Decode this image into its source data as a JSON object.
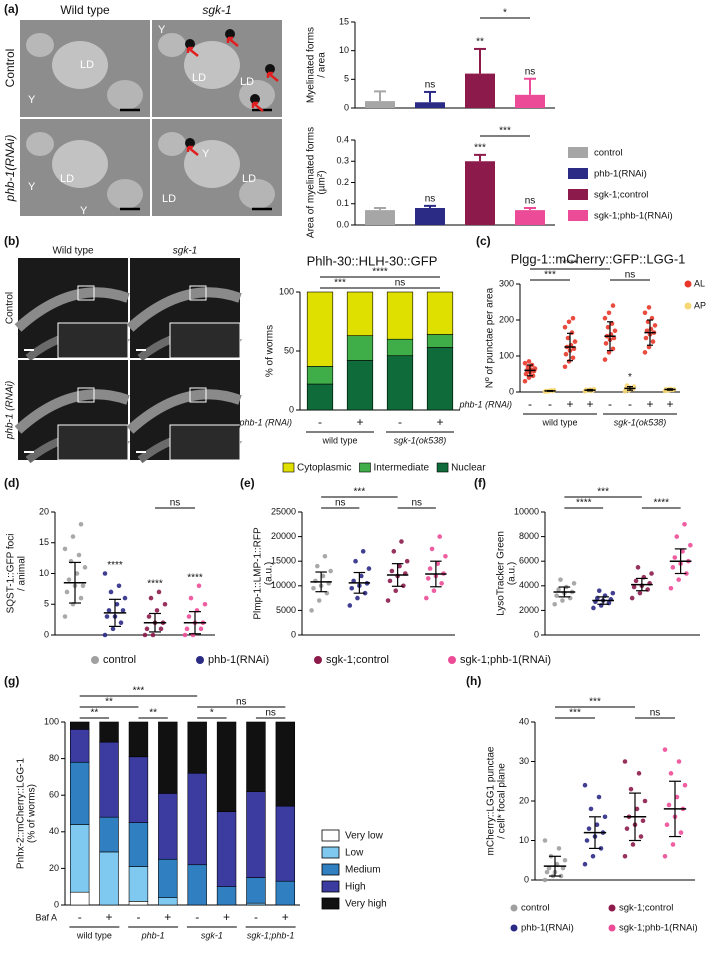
{
  "panel_labels": [
    "(a)",
    "(b)",
    "(c)",
    "(d)",
    "(e)",
    "(f)",
    "(g)",
    "(h)"
  ],
  "panel_a": {
    "columns": [
      "Wild type",
      "sgk-1"
    ],
    "rows": [
      "Control",
      "phb-1(RNAi)"
    ],
    "image_labels": [
      [
        "Y",
        "LD"
      ],
      [
        "Y",
        "LD",
        "LD"
      ],
      [
        "Y",
        "LD",
        "Y"
      ],
      [
        "Y",
        "LD",
        "LD"
      ]
    ]
  },
  "panel_b": {
    "columns": [
      "Wild type",
      "sgk-1"
    ],
    "rows": [
      "Control",
      "phb-1 (RNAi)"
    ]
  },
  "chart_data": [
    {
      "type": "bar",
      "ylabel": [
        "Myelinated forms",
        "/ area"
      ],
      "ylim": [
        0,
        15
      ],
      "yticks": [
        0,
        5,
        10,
        15
      ],
      "values": [
        1.2,
        1.0,
        6.0,
        2.3
      ],
      "errors": [
        1.7,
        1.8,
        4.3,
        2.8
      ],
      "colors": [
        "#a6a6a6",
        "#2b2a85",
        "#8c1b4b",
        "#ec4c97"
      ],
      "sig": [
        null,
        "ns",
        "**",
        "ns"
      ],
      "brackets": [
        {
          "label": "*",
          "from": 2,
          "to": 3
        }
      ]
    },
    {
      "type": "bar",
      "ylabel": [
        "Area of myelinated forms",
        "(µm²)"
      ],
      "ylim": [
        0,
        0.4
      ],
      "yticks": [
        {
          "value": 0,
          "label": "0.0"
        },
        0.1,
        0.2,
        0.3,
        0.4
      ],
      "values": [
        0.07,
        0.08,
        0.3,
        0.07
      ],
      "errors": [
        0.01,
        0.01,
        0.03,
        0.01
      ],
      "colors": [
        "#a6a6a6",
        "#2b2a85",
        "#8c1b4b",
        "#ec4c97"
      ],
      "sig": [
        null,
        "ns",
        "***",
        "ns"
      ],
      "names": [
        "control",
        "phb-1(RNAi)",
        "sgk-1;control",
        "sgk-1;phb-1(RNAi)"
      ],
      "legend": "right",
      "brackets": [
        {
          "label": "***",
          "from": 2,
          "to": 3
        }
      ]
    },
    {
      "type": "stacked",
      "title": "Phlh-30::HLH-30::GFP",
      "ylabel": [
        "% of worms"
      ],
      "ylim": [
        0,
        100
      ],
      "yticks": [
        0,
        50,
        100
      ],
      "series": [
        {
          "name": "Nuclear",
          "color": "#0f6b3a",
          "values": [
            22,
            42,
            46,
            53
          ]
        },
        {
          "name": "Intermediate",
          "color": "#3fae49",
          "values": [
            15,
            21,
            14,
            11
          ]
        },
        {
          "name": "Cytoplasmic",
          "color": "#e0e000",
          "values": [
            63,
            37,
            40,
            36
          ]
        }
      ],
      "sign_label": "phb-1 (RNAi)",
      "signs": [
        "-",
        "+",
        "-",
        "+"
      ],
      "groups": [
        "wild type",
        "sgk-1(ok538)"
      ],
      "legend": "bottom",
      "brackets": [
        {
          "label": "***",
          "from": 0,
          "to": 1
        },
        {
          "label": "ns",
          "from": 1,
          "to": 3
        },
        {
          "label": "****",
          "from": 0,
          "to": 3
        }
      ]
    },
    {
      "type": "strip",
      "title": "Plgg-1::mCherry::GFP::LGG-1",
      "ylabel": [
        "Nº of punctae per area"
      ],
      "ylim": [
        0,
        300
      ],
      "yticks": [
        0,
        100,
        200,
        300
      ],
      "legend_items": [
        {
          "name": "AL",
          "color": "#e8372a"
        },
        {
          "name": "AP",
          "color": "#f7d774"
        }
      ],
      "legend": "right",
      "series": [
        {
          "color": "#e8372a",
          "values": [
            30,
            40,
            45,
            50,
            55,
            58,
            60,
            62,
            65,
            70,
            75,
            80,
            85
          ],
          "mean": 60,
          "sd": 15
        },
        {
          "color": "#f7d774",
          "values": [
            1,
            2,
            3,
            3,
            4,
            5,
            2,
            4
          ],
          "mean": 3,
          "sd": 1
        },
        {
          "color": "#e8372a",
          "values": [
            70,
            85,
            95,
            105,
            115,
            120,
            125,
            130,
            140,
            150,
            165,
            180,
            195,
            205
          ],
          "mean": 125,
          "sd": 38
        },
        {
          "color": "#f7d774",
          "values": [
            2,
            4,
            5,
            6,
            7,
            8,
            5,
            3
          ],
          "mean": 5,
          "sd": 2
        },
        {
          "color": "#e8372a",
          "values": [
            90,
            110,
            120,
            135,
            145,
            150,
            155,
            160,
            170,
            180,
            190,
            205,
            220,
            240
          ],
          "mean": 155,
          "sd": 40
        },
        {
          "color": "#f7d774",
          "values": [
            2,
            5,
            8,
            10,
            12,
            15,
            18,
            9
          ],
          "mean": 10,
          "sd": 5,
          "sig": "*"
        },
        {
          "color": "#e8372a",
          "values": [
            110,
            125,
            140,
            150,
            160,
            165,
            170,
            175,
            185,
            195,
            205,
            220,
            235
          ],
          "mean": 165,
          "sd": 35
        },
        {
          "color": "#f7d774",
          "values": [
            3,
            5,
            6,
            8,
            9,
            7,
            4,
            6
          ],
          "mean": 7,
          "sd": 2
        }
      ],
      "sign_label": "phb-1 (RNAi)",
      "signs": [
        "-",
        "-",
        "+",
        "+",
        "-",
        "-",
        "+",
        "+"
      ],
      "groups": [
        "wild type",
        "sgk-1(ok538)"
      ],
      "brackets": [
        {
          "label": "***",
          "from": 0,
          "to": 2
        },
        {
          "label": "****",
          "from": 0,
          "to": 4
        },
        {
          "label": "ns",
          "from": 4,
          "to": 6
        }
      ]
    },
    {
      "type": "strip",
      "ylabel": [
        "SQST-1::GFP foci",
        "/ animal"
      ],
      "ylim": [
        0,
        20
      ],
      "yticks": [
        0,
        5,
        10,
        15,
        20
      ],
      "legend": "bottom",
      "series": [
        {
          "name": "control",
          "color": "#a0a0a0",
          "values": [
            3,
            5,
            6,
            7,
            8,
            8,
            9,
            10,
            11,
            12,
            13,
            14,
            16,
            18
          ],
          "mean": 8.5,
          "sd": 3.3
        },
        {
          "name": "phb-1(RNAi)",
          "color": "#2b2a85",
          "values": [
            0,
            1,
            2,
            3,
            3,
            4,
            4,
            5,
            6,
            7,
            8,
            10
          ],
          "mean": 3.6,
          "sd": 2.2,
          "sig": "****"
        },
        {
          "name": "sgk-1;control",
          "color": "#8c1b4b",
          "values": [
            0,
            0,
            1,
            1,
            2,
            2,
            3,
            4,
            5,
            6,
            7
          ],
          "mean": 2,
          "sd": 1.5,
          "sig": "****"
        },
        {
          "name": "sgk-1;phb-1(RNAi)",
          "color": "#ec4c97",
          "values": [
            0,
            0,
            1,
            1,
            2,
            2,
            3,
            4,
            5,
            6,
            8
          ],
          "mean": 2,
          "sd": 1.8,
          "sig": "****"
        }
      ],
      "brackets": [
        {
          "label": "ns",
          "from": 2,
          "to": 3
        }
      ]
    },
    {
      "type": "strip",
      "ylabel": [
        "Plmp-1::LMP-1::RFP",
        "(a.u.)"
      ],
      "ylim": [
        0,
        25000
      ],
      "yticks": [
        0,
        5000,
        10000,
        15000,
        20000,
        25000
      ],
      "series": [
        {
          "color": "#a0a0a0",
          "values": [
            5000,
            7000,
            8500,
            9500,
            10000,
            10500,
            11000,
            12000,
            13000,
            14000,
            16000
          ],
          "mean": 10800,
          "sd": 2000
        },
        {
          "color": "#2b2a85",
          "values": [
            6000,
            7500,
            8500,
            9500,
            10000,
            10500,
            11000,
            12000,
            13500,
            15000,
            17000
          ],
          "mean": 10600,
          "sd": 2100
        },
        {
          "color": "#8c1b4b",
          "values": [
            7000,
            9000,
            10000,
            11000,
            12000,
            12500,
            13000,
            14000,
            15000,
            17000,
            19000
          ],
          "mean": 12200,
          "sd": 2300
        },
        {
          "color": "#ec4c97",
          "values": [
            7500,
            9000,
            10500,
            11500,
            12000,
            12500,
            13500,
            14500,
            16000,
            17500,
            20000
          ],
          "mean": 12400,
          "sd": 2600
        }
      ],
      "brackets": [
        {
          "label": "ns",
          "from": 0,
          "to": 1
        },
        {
          "label": "***",
          "from": 0,
          "to": 2
        },
        {
          "label": "ns",
          "from": 2,
          "to": 3
        }
      ]
    },
    {
      "type": "strip",
      "ylabel": [
        "LysoTracker Green",
        "(a.u.)"
      ],
      "ylim": [
        0,
        10000
      ],
      "yticks": [
        0,
        2000,
        4000,
        6000,
        8000,
        10000
      ],
      "series": [
        {
          "color": "#a0a0a0",
          "values": [
            2500,
            2800,
            3000,
            3200,
            3400,
            3500,
            3700,
            3900,
            4200,
            4500
          ],
          "mean": 3500,
          "sd": 400
        },
        {
          "color": "#2b2a85",
          "values": [
            2200,
            2400,
            2600,
            2700,
            2800,
            2900,
            3000,
            3200,
            3400,
            3600
          ],
          "mean": 2800,
          "sd": 300
        },
        {
          "color": "#8c1b4b",
          "values": [
            3000,
            3400,
            3700,
            3900,
            4000,
            4200,
            4400,
            4700,
            5000,
            5500
          ],
          "mean": 4100,
          "sd": 500
        },
        {
          "color": "#ec4c97",
          "values": [
            3800,
            4500,
            5000,
            5500,
            5800,
            6000,
            6300,
            6800,
            7300,
            8000,
            9000
          ],
          "mean": 6000,
          "sd": 1000
        }
      ],
      "brackets": [
        {
          "label": "****",
          "from": 0,
          "to": 1
        },
        {
          "label": "***",
          "from": 0,
          "to": 2
        },
        {
          "label": "****",
          "from": 2,
          "to": 3
        }
      ]
    },
    {
      "type": "stacked",
      "ylabel": [
        "Pnhx-2::mCherry::LGG-1",
        "(% of worms)"
      ],
      "ylim": [
        0,
        100
      ],
      "yticks": [
        0,
        20,
        40,
        60,
        80,
        100
      ],
      "legend": "right",
      "series": [
        {
          "name": "Very low",
          "color": "#ffffff",
          "values": [
            7,
            0,
            2,
            0,
            0,
            0,
            0,
            0
          ]
        },
        {
          "name": "Low",
          "color": "#7fc8ef",
          "values": [
            37,
            29,
            19,
            4,
            0,
            0,
            1,
            0
          ]
        },
        {
          "name": "Medium",
          "color": "#2f7fc1",
          "values": [
            34,
            19,
            24,
            21,
            22,
            10,
            14,
            13
          ]
        },
        {
          "name": "High",
          "color": "#3b3ba0",
          "values": [
            18,
            41,
            36,
            36,
            50,
            41,
            47,
            41
          ]
        },
        {
          "name": "Very high",
          "color": "#111111",
          "values": [
            4,
            11,
            19,
            39,
            28,
            49,
            38,
            46
          ]
        }
      ],
      "sign_label": "Baf A",
      "signs": [
        "-",
        "+",
        "-",
        "+",
        "-",
        "+",
        "-",
        "+"
      ],
      "groups": [
        "wild type",
        "phb-1",
        "sgk-1",
        "sgk-1;phb-1"
      ],
      "brackets": [
        {
          "label": "**",
          "from": 0,
          "to": 1
        },
        {
          "label": "**",
          "from": 0,
          "to": 2
        },
        {
          "label": "***",
          "from": 0,
          "to": 4
        },
        {
          "label": "**",
          "from": 2,
          "to": 3
        },
        {
          "label": "*",
          "from": 4,
          "to": 5
        },
        {
          "label": "ns",
          "from": 4,
          "to": 7
        },
        {
          "label": "ns",
          "from": 6,
          "to": 7
        }
      ]
    },
    {
      "type": "strip",
      "ylabel": [
        "mCherry::LGG1 punctae",
        "/ cell* focal plane"
      ],
      "ylim": [
        0,
        40
      ],
      "yticks": [
        0,
        10,
        20,
        30,
        40
      ],
      "legend": "bottom",
      "series": [
        {
          "name": "control",
          "color": "#a0a0a0",
          "values": [
            0,
            1,
            1,
            2,
            2,
            3,
            3,
            4,
            5,
            6,
            8,
            10
          ],
          "mean": 3.5,
          "sd": 2.5
        },
        {
          "name": "phb-1(RNAi)",
          "color": "#2b2a85",
          "values": [
            4,
            6,
            8,
            10,
            11,
            12,
            13,
            14,
            16,
            18,
            21,
            24
          ],
          "mean": 12,
          "sd": 4
        },
        {
          "name": "sgk-1;control",
          "color": "#8c1b4b",
          "values": [
            6,
            9,
            11,
            13,
            14,
            15,
            16,
            18,
            20,
            23,
            27,
            30
          ],
          "mean": 16,
          "sd": 6
        },
        {
          "name": "sgk-1;phb-1(RNAi)",
          "color": "#ec4c97",
          "values": [
            6,
            9,
            12,
            14,
            16,
            18,
            19,
            21,
            24,
            27,
            30,
            33
          ],
          "mean": 18,
          "sd": 7
        }
      ],
      "brackets": [
        {
          "label": "***",
          "from": 0,
          "to": 1
        },
        {
          "label": "***",
          "from": 0,
          "to": 2
        },
        {
          "label": "ns",
          "from": 2,
          "to": 3
        }
      ]
    }
  ]
}
